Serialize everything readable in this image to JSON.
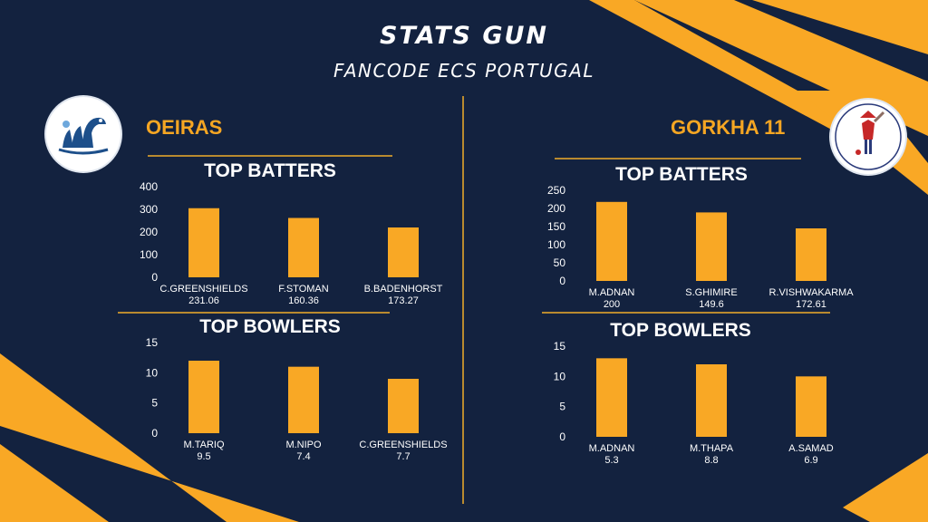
{
  "header": {
    "title": "STATS GUN",
    "subtitle": "FANCODE ECS PORTUGAL"
  },
  "colors": {
    "background": "#13223f",
    "accent": "#f5a623",
    "bar": "#f9a825",
    "divider": "#b98a2f"
  },
  "teams": [
    {
      "name": "OEIRAS",
      "logo_icon": "oeiras-swan-logo-icon",
      "batters_heading": "TOP BATTERS",
      "bowlers_heading": "TOP BOWLERS"
    },
    {
      "name": "GORKHA 11",
      "logo_icon": "gorkha-11-cricket-club-logo-icon",
      "logo_text": "Gorkha 11 Cricket Club, Portugal",
      "logo_est": "Estd. 2016",
      "batters_heading": "TOP BATTERS",
      "bowlers_heading": "TOP BOWLERS"
    }
  ],
  "chart_data": [
    {
      "type": "bar",
      "team": "OEIRAS",
      "title": "TOP BATTERS",
      "categories": [
        "C.GREENSHIELDS",
        "F.STOMAN",
        "B.BADENHORST"
      ],
      "sublabels": [
        "231.06",
        "160.36",
        "173.27"
      ],
      "values": [
        305,
        262,
        220
      ],
      "ylim": [
        0,
        400
      ],
      "yticks": [
        0,
        100,
        200,
        300,
        400
      ],
      "grid": false
    },
    {
      "type": "bar",
      "team": "OEIRAS",
      "title": "TOP BOWLERS",
      "categories": [
        "M.TARIQ",
        "M.NIPO",
        "C.GREENSHIELDS"
      ],
      "sublabels": [
        "9.5",
        "7.4",
        "7.7"
      ],
      "values": [
        12,
        11,
        9
      ],
      "ylim": [
        0,
        15
      ],
      "yticks": [
        0,
        5,
        10,
        15
      ],
      "grid": false
    },
    {
      "type": "bar",
      "team": "GORKHA 11",
      "title": "TOP BATTERS",
      "categories": [
        "M.ADNAN",
        "S.GHIMIRE",
        "R.VISHWAKARMA"
      ],
      "sublabels": [
        "200",
        "149.6",
        "172.61"
      ],
      "values": [
        218,
        189,
        145
      ],
      "ylim": [
        0,
        250
      ],
      "yticks": [
        0,
        50,
        100,
        150,
        200,
        250
      ],
      "grid": false
    },
    {
      "type": "bar",
      "team": "GORKHA 11",
      "title": "TOP BOWLERS",
      "categories": [
        "M.ADNAN",
        "M.THAPA",
        "A.SAMAD"
      ],
      "sublabels": [
        "5.3",
        "8.8",
        "6.9"
      ],
      "values": [
        13,
        12,
        10
      ],
      "ylim": [
        0,
        15
      ],
      "yticks": [
        0,
        5,
        10,
        15
      ],
      "grid": false
    }
  ]
}
